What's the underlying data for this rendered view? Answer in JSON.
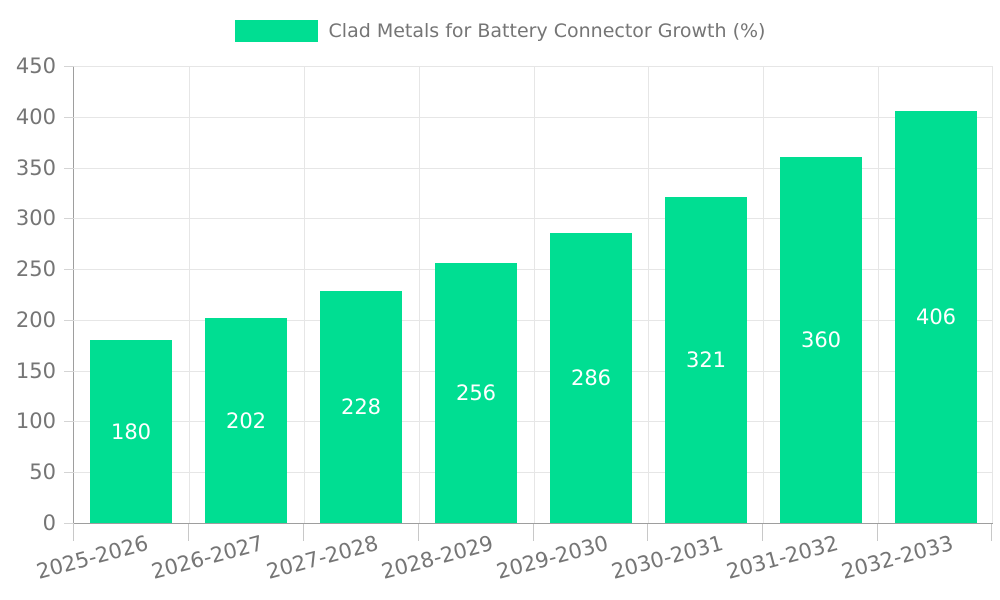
{
  "chart_data": {
    "type": "bar",
    "title": "Clad Metals for Battery Connector Growth (%)",
    "legend": {
      "position": "top",
      "label": "Clad Metals for Battery Connector Growth (%)"
    },
    "categories": [
      "2025-2026",
      "2026-2027",
      "2027-2028",
      "2028-2029",
      "2029-2030",
      "2030-2031",
      "2031-2032",
      "2032-2033"
    ],
    "series": [
      {
        "name": "Clad Metals for Battery Connector Growth (%)",
        "values": [
          180,
          202,
          228,
          256,
          286,
          321,
          360,
          406
        ]
      }
    ],
    "values": [
      180,
      202,
      228,
      256,
      286,
      321,
      360,
      406
    ],
    "bar_labels": [
      "180",
      "202",
      "228",
      "256",
      "286",
      "321",
      "360",
      "406"
    ],
    "xlabel": "",
    "ylabel": "",
    "ylim": [
      0,
      450
    ],
    "ytick_step": 50,
    "yticks": [
      0,
      50,
      100,
      150,
      200,
      250,
      300,
      350,
      400,
      450
    ],
    "grid": true,
    "x_label_rotation_deg": -15,
    "colors": {
      "bar": "#00de92",
      "bar_label": "#ffffff",
      "axis_line": "#9e9e9e",
      "grid_line": "#e6e6e6",
      "tick_line": "#cccccc",
      "text": "#757575",
      "background": "#ffffff"
    }
  }
}
